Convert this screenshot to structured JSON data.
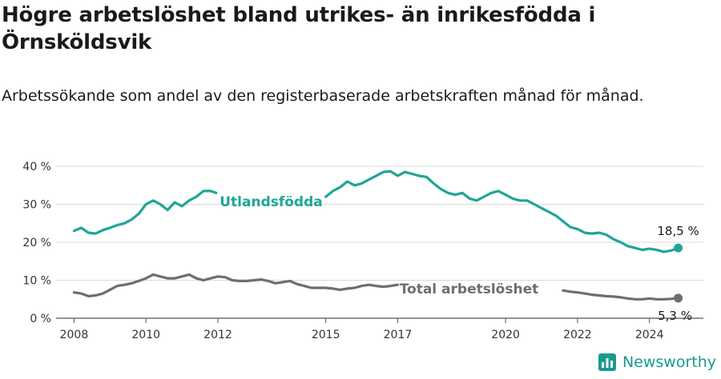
{
  "title": "Högre arbetslöshet bland utrikes- än inrikesfödda i Örnsköldsvik",
  "subtitle": "Arbetssökande som andel av den registerbaserade arbetskraften månad för månad.",
  "brand": "Newsworthy",
  "colors": {
    "utlandsfodda": "#1fa598",
    "total": "#6e6e6e",
    "grid": "#d9d9d9",
    "axis": "#555555"
  },
  "chart_data": {
    "type": "line",
    "xlim": [
      2007.5,
      2025.5
    ],
    "ylim": [
      0,
      40
    ],
    "y_ticks": [
      0,
      10,
      20,
      30,
      40
    ],
    "y_tick_labels": [
      "0 %",
      "10 %",
      "20 %",
      "30 %",
      "40 %"
    ],
    "x_ticks": [
      2008,
      2010,
      2012,
      2015,
      2017,
      2020,
      2022,
      2024
    ],
    "x_tick_labels": [
      "2008",
      "2010",
      "2012",
      "2015",
      "2017",
      "2020",
      "2022",
      "2024"
    ],
    "grid": true,
    "series": [
      {
        "name": "Utlandsfödda",
        "end_label": "18,5 %",
        "x": [
          2008.0,
          2008.2,
          2008.4,
          2008.6,
          2008.8,
          2009.0,
          2009.2,
          2009.4,
          2009.6,
          2009.8,
          2010.0,
          2010.2,
          2010.4,
          2010.6,
          2010.8,
          2011.0,
          2011.2,
          2011.4,
          2011.6,
          2011.8,
          2011.95,
          2015.0,
          2015.2,
          2015.4,
          2015.6,
          2015.8,
          2016.0,
          2016.2,
          2016.4,
          2016.6,
          2016.8,
          2017.0,
          2017.2,
          2017.4,
          2017.6,
          2017.8,
          2018.0,
          2018.2,
          2018.4,
          2018.6,
          2018.8,
          2019.0,
          2019.2,
          2019.4,
          2019.6,
          2019.8,
          2020.0,
          2020.2,
          2020.4,
          2020.6,
          2020.8,
          2021.0,
          2021.2,
          2021.4,
          2021.6,
          2021.8,
          2022.0,
          2022.2,
          2022.4,
          2022.6,
          2022.8,
          2023.0,
          2023.2,
          2023.4,
          2023.6,
          2023.8,
          2024.0,
          2024.2,
          2024.4,
          2024.6,
          2024.8
        ],
        "values": [
          23.0,
          23.8,
          22.5,
          22.3,
          23.2,
          23.8,
          24.5,
          25.0,
          26.0,
          27.5,
          30.0,
          31.0,
          30.0,
          28.5,
          30.5,
          29.5,
          31.0,
          32.0,
          33.5,
          33.5,
          33.0,
          32.0,
          33.5,
          34.5,
          36.0,
          35.0,
          35.5,
          36.5,
          37.5,
          38.5,
          38.7,
          37.5,
          38.5,
          38.0,
          37.5,
          37.2,
          35.5,
          34.0,
          33.0,
          32.5,
          33.0,
          31.5,
          31.0,
          32.0,
          33.0,
          33.5,
          32.5,
          31.5,
          31.0,
          31.0,
          30.0,
          29.0,
          28.0,
          27.0,
          25.5,
          24.0,
          23.5,
          22.5,
          22.3,
          22.5,
          22.0,
          20.8,
          20.0,
          19.0,
          18.5,
          18.0,
          18.3,
          18.0,
          17.5,
          17.8,
          18.5
        ]
      },
      {
        "name": "Total arbetslöshet",
        "end_label": "5,3 %",
        "x": [
          2008.0,
          2008.2,
          2008.4,
          2008.6,
          2008.8,
          2009.0,
          2009.2,
          2009.4,
          2009.6,
          2009.8,
          2010.0,
          2010.2,
          2010.4,
          2010.6,
          2010.8,
          2011.0,
          2011.2,
          2011.4,
          2011.6,
          2011.8,
          2012.0,
          2012.2,
          2012.4,
          2012.6,
          2012.8,
          2013.0,
          2013.2,
          2013.4,
          2013.6,
          2013.8,
          2014.0,
          2014.2,
          2014.4,
          2014.6,
          2014.8,
          2015.0,
          2015.2,
          2015.4,
          2015.6,
          2015.8,
          2016.0,
          2016.2,
          2016.4,
          2016.6,
          2016.8,
          2017.0,
          2021.6,
          2021.8,
          2022.0,
          2022.2,
          2022.4,
          2022.6,
          2022.8,
          2023.0,
          2023.2,
          2023.4,
          2023.6,
          2023.8,
          2024.0,
          2024.2,
          2024.4,
          2024.6,
          2024.8
        ],
        "values": [
          6.8,
          6.5,
          5.8,
          6.0,
          6.5,
          7.5,
          8.5,
          8.8,
          9.2,
          9.8,
          10.5,
          11.5,
          11.0,
          10.5,
          10.5,
          11.0,
          11.5,
          10.5,
          10.0,
          10.5,
          11.0,
          10.8,
          10.0,
          9.8,
          9.8,
          10.0,
          10.2,
          9.8,
          9.2,
          9.5,
          9.8,
          9.0,
          8.5,
          8.0,
          8.0,
          8.0,
          7.8,
          7.5,
          7.8,
          8.0,
          8.5,
          8.8,
          8.5,
          8.3,
          8.5,
          8.8,
          7.3,
          7.0,
          6.8,
          6.5,
          6.2,
          6.0,
          5.8,
          5.7,
          5.5,
          5.2,
          5.0,
          5.0,
          5.2,
          5.0,
          5.0,
          5.1,
          5.3
        ]
      }
    ]
  }
}
